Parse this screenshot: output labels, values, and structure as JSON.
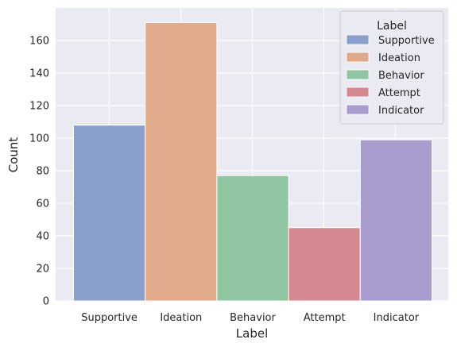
{
  "chart_data": {
    "type": "bar",
    "xlabel": "Label",
    "ylabel": "Count",
    "categories": [
      "Supportive",
      "Ideation",
      "Behavior",
      "Attempt",
      "Indicator"
    ],
    "values": [
      108,
      171,
      77,
      45,
      99
    ],
    "ylim": [
      0,
      180
    ],
    "yticks": [
      0,
      20,
      40,
      60,
      80,
      100,
      120,
      140,
      160
    ],
    "colors": [
      "#8a9fcb",
      "#e0aa8b",
      "#8fc5a1",
      "#d68891",
      "#a99cce"
    ],
    "grid": true,
    "legend": {
      "title": "Label",
      "position": "top-right",
      "entries": [
        "Supportive",
        "Ideation",
        "Behavior",
        "Attempt",
        "Indicator"
      ]
    }
  }
}
